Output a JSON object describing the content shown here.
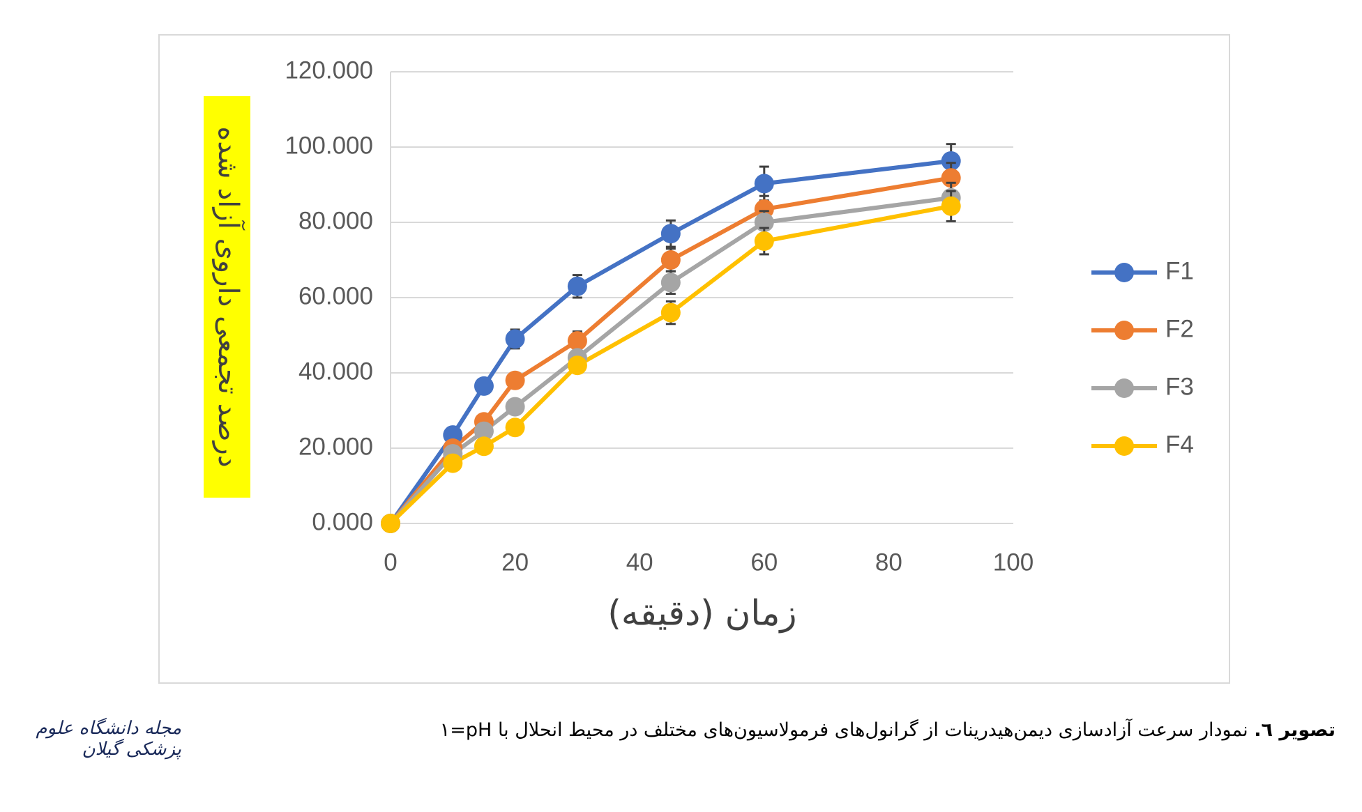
{
  "chart_data": {
    "type": "line",
    "x_label": "زمان (دقیقه)",
    "y_label": "درصد تجمعی داروی آزاد شده",
    "x": [
      0,
      10,
      15,
      20,
      30,
      45,
      60,
      90
    ],
    "series": [
      {
        "name": "F1",
        "color": "#4472c4",
        "values": [
          0,
          23.5,
          36.5,
          49,
          63,
          77,
          90.3,
          96.3
        ],
        "errors": [
          0,
          1.5,
          1.5,
          2.5,
          3,
          3.5,
          4.5,
          4.5
        ]
      },
      {
        "name": "F2",
        "color": "#ed7d31",
        "values": [
          0,
          20,
          27,
          38,
          48.5,
          70,
          83.5,
          91.8
        ],
        "errors": [
          0,
          1.5,
          1.5,
          2,
          2.5,
          3,
          3.5,
          4
        ]
      },
      {
        "name": "F3",
        "color": "#a5a5a5",
        "values": [
          0,
          18.5,
          24.5,
          31,
          44,
          64,
          80,
          86.5
        ],
        "errors": [
          0,
          1.5,
          1.5,
          1.5,
          2,
          3,
          3,
          4
        ]
      },
      {
        "name": "F4",
        "color": "#ffc000",
        "values": [
          0,
          16,
          20.5,
          25.5,
          42,
          56,
          75,
          84.3
        ],
        "errors": [
          0,
          1.5,
          1.5,
          1.5,
          2,
          3,
          3.5,
          4
        ]
      }
    ],
    "xlim": [
      0,
      100
    ],
    "xticks": [
      0,
      20,
      40,
      60,
      80,
      100
    ],
    "ylim": [
      0,
      120
    ],
    "yticks": [
      {
        "value": 0,
        "label": "0.000"
      },
      {
        "value": 20,
        "label": "20.000"
      },
      {
        "value": 40,
        "label": "40.000"
      },
      {
        "value": 60,
        "label": "60.000"
      },
      {
        "value": 80,
        "label": "80.000"
      },
      {
        "value": 100,
        "label": "100.000"
      },
      {
        "value": 120,
        "label": "120.000"
      }
    ],
    "grid": true,
    "legend": "right",
    "error_color": "#404040"
  },
  "caption": {
    "label": "تصویر ٦.",
    "text": "نمودار سرعت آزادسازی دیمن‌هیدرینات از گرانول‌های فرمولاسیون‌های مختلف در محیط انحلال با pH=١"
  },
  "journal": "مجله دانشگاه علوم پزشکی گیلان"
}
